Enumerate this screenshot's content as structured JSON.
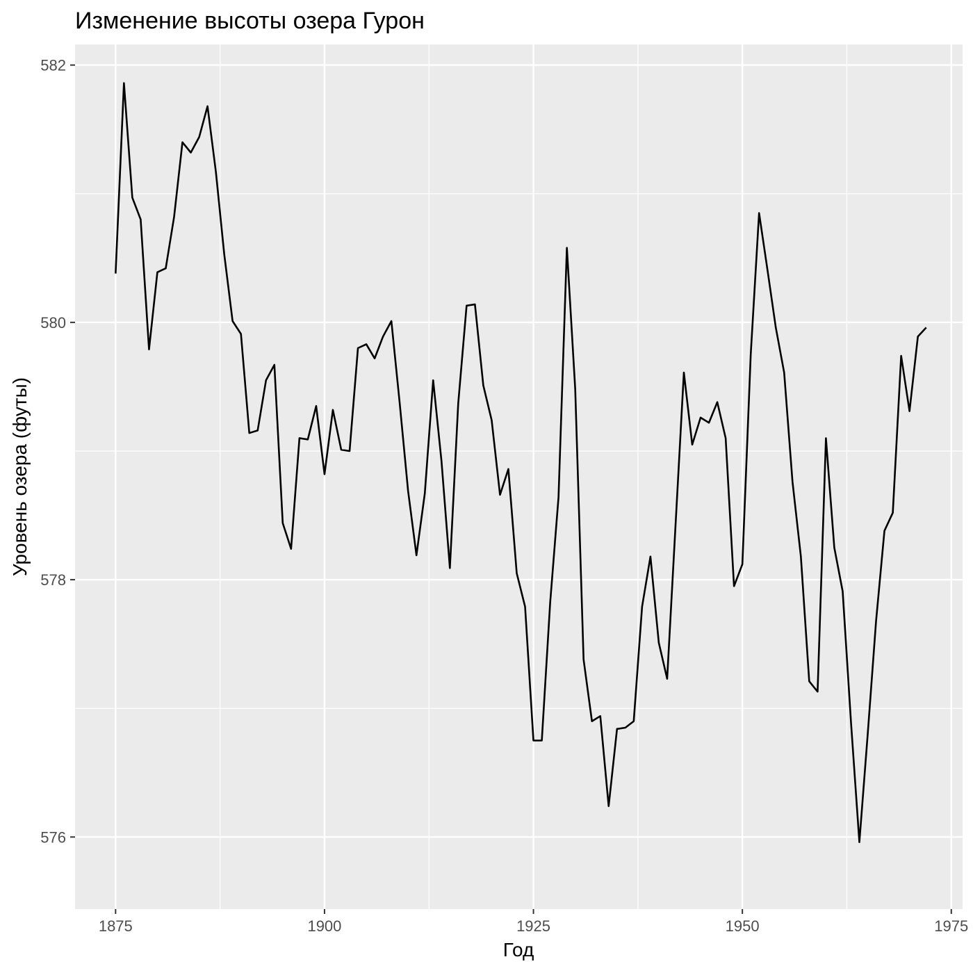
{
  "chart_data": {
    "type": "line",
    "title": "Изменение высоты озера Гурон",
    "xlabel": "Год",
    "ylabel": "Уровень озера (футы)",
    "xlim": [
      1870.15,
      1976.35
    ],
    "ylim": [
      575.44,
      582.16
    ],
    "x_ticks": [
      1875,
      1900,
      1925,
      1950,
      1975
    ],
    "x_tick_labels": [
      "1875",
      "1900",
      "1925",
      "1950",
      "1975"
    ],
    "y_ticks": [
      576,
      578,
      580,
      582
    ],
    "y_tick_labels": [
      "576",
      "578",
      "580",
      "582"
    ],
    "grid": true,
    "legend": "none",
    "colors": {
      "panel_background": "#ebebeb",
      "grid": "#ffffff",
      "line": "#000000",
      "tick_label": "#4d4d4d"
    },
    "series": [
      {
        "x": [
          1875,
          1876,
          1877,
          1878,
          1879,
          1880,
          1881,
          1882,
          1883,
          1884,
          1885,
          1886,
          1887,
          1888,
          1889,
          1890,
          1891,
          1892,
          1893,
          1894,
          1895,
          1896,
          1897,
          1898,
          1899,
          1900,
          1901,
          1902,
          1903,
          1904,
          1905,
          1906,
          1907,
          1908,
          1909,
          1910,
          1911,
          1912,
          1913,
          1914,
          1915,
          1916,
          1917,
          1918,
          1919,
          1920,
          1921,
          1922,
          1923,
          1924,
          1925,
          1926,
          1927,
          1928,
          1929,
          1930,
          1931,
          1932,
          1933,
          1934,
          1935,
          1936,
          1937,
          1938,
          1939,
          1940,
          1941,
          1942,
          1943,
          1944,
          1945,
          1946,
          1947,
          1948,
          1949,
          1950,
          1951,
          1952,
          1953,
          1954,
          1955,
          1956,
          1957,
          1958,
          1959,
          1960,
          1961,
          1962,
          1963,
          1964,
          1965,
          1966,
          1967,
          1968,
          1969,
          1970,
          1971,
          1972
        ],
        "y": [
          580.38,
          581.86,
          580.97,
          580.8,
          579.79,
          580.39,
          580.42,
          580.82,
          581.4,
          581.32,
          581.44,
          581.68,
          581.17,
          580.53,
          580.01,
          579.91,
          579.14,
          579.16,
          579.55,
          579.67,
          578.44,
          578.24,
          579.1,
          579.09,
          579.35,
          578.82,
          579.32,
          579.01,
          579.0,
          579.8,
          579.83,
          579.72,
          579.89,
          580.01,
          579.37,
          578.69,
          578.19,
          578.67,
          579.55,
          578.92,
          578.09,
          579.37,
          580.13,
          580.14,
          579.51,
          579.24,
          578.66,
          578.86,
          578.05,
          577.79,
          576.75,
          576.75,
          577.82,
          578.64,
          580.58,
          579.48,
          577.38,
          576.9,
          576.94,
          576.24,
          576.84,
          576.85,
          576.9,
          577.79,
          578.18,
          577.51,
          577.23,
          578.42,
          579.61,
          579.05,
          579.26,
          579.22,
          579.38,
          579.1,
          577.95,
          578.12,
          579.75,
          580.85,
          580.41,
          579.96,
          579.61,
          578.76,
          578.18,
          577.21,
          577.13,
          579.1,
          578.25,
          577.91,
          576.89,
          575.96,
          576.8,
          577.68,
          578.38,
          578.52,
          579.74,
          579.31,
          579.89,
          579.96
        ]
      }
    ]
  }
}
